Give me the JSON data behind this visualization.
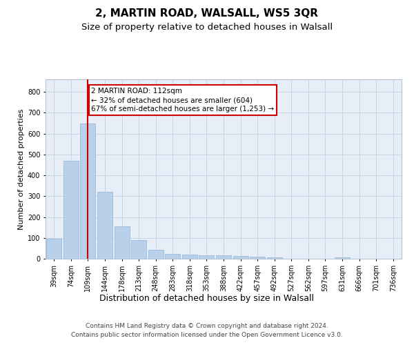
{
  "title1": "2, MARTIN ROAD, WALSALL, WS5 3QR",
  "title2": "Size of property relative to detached houses in Walsall",
  "xlabel": "Distribution of detached houses by size in Walsall",
  "ylabel": "Number of detached properties",
  "categories": [
    "39sqm",
    "74sqm",
    "109sqm",
    "144sqm",
    "178sqm",
    "213sqm",
    "248sqm",
    "283sqm",
    "318sqm",
    "353sqm",
    "388sqm",
    "422sqm",
    "457sqm",
    "492sqm",
    "527sqm",
    "562sqm",
    "597sqm",
    "631sqm",
    "666sqm",
    "701sqm",
    "736sqm"
  ],
  "values": [
    95,
    470,
    648,
    320,
    155,
    88,
    42,
    22,
    20,
    18,
    15,
    12,
    10,
    5,
    0,
    0,
    0,
    8,
    0,
    0,
    0
  ],
  "bar_color": "#b8d0ea",
  "bar_edge_color": "#90b4d8",
  "property_line_x": 2,
  "property_line_label": "2 MARTIN ROAD: 112sqm",
  "annotation_line1": "← 32% of detached houses are smaller (604)",
  "annotation_line2": "67% of semi-detached houses are larger (1,253) →",
  "annotation_box_color": "#ffffff",
  "annotation_box_edge_color": "#cc0000",
  "line_color": "#cc0000",
  "ylim": [
    0,
    860
  ],
  "yticks": [
    0,
    100,
    200,
    300,
    400,
    500,
    600,
    700,
    800
  ],
  "footer1": "Contains HM Land Registry data © Crown copyright and database right 2024.",
  "footer2": "Contains public sector information licensed under the Open Government Licence v3.0.",
  "plot_bg_color": "#e8eef8",
  "title1_fontsize": 11,
  "title2_fontsize": 9.5,
  "xlabel_fontsize": 9,
  "ylabel_fontsize": 8,
  "tick_fontsize": 7,
  "footer_fontsize": 6.5,
  "annot_fontsize": 7.5
}
